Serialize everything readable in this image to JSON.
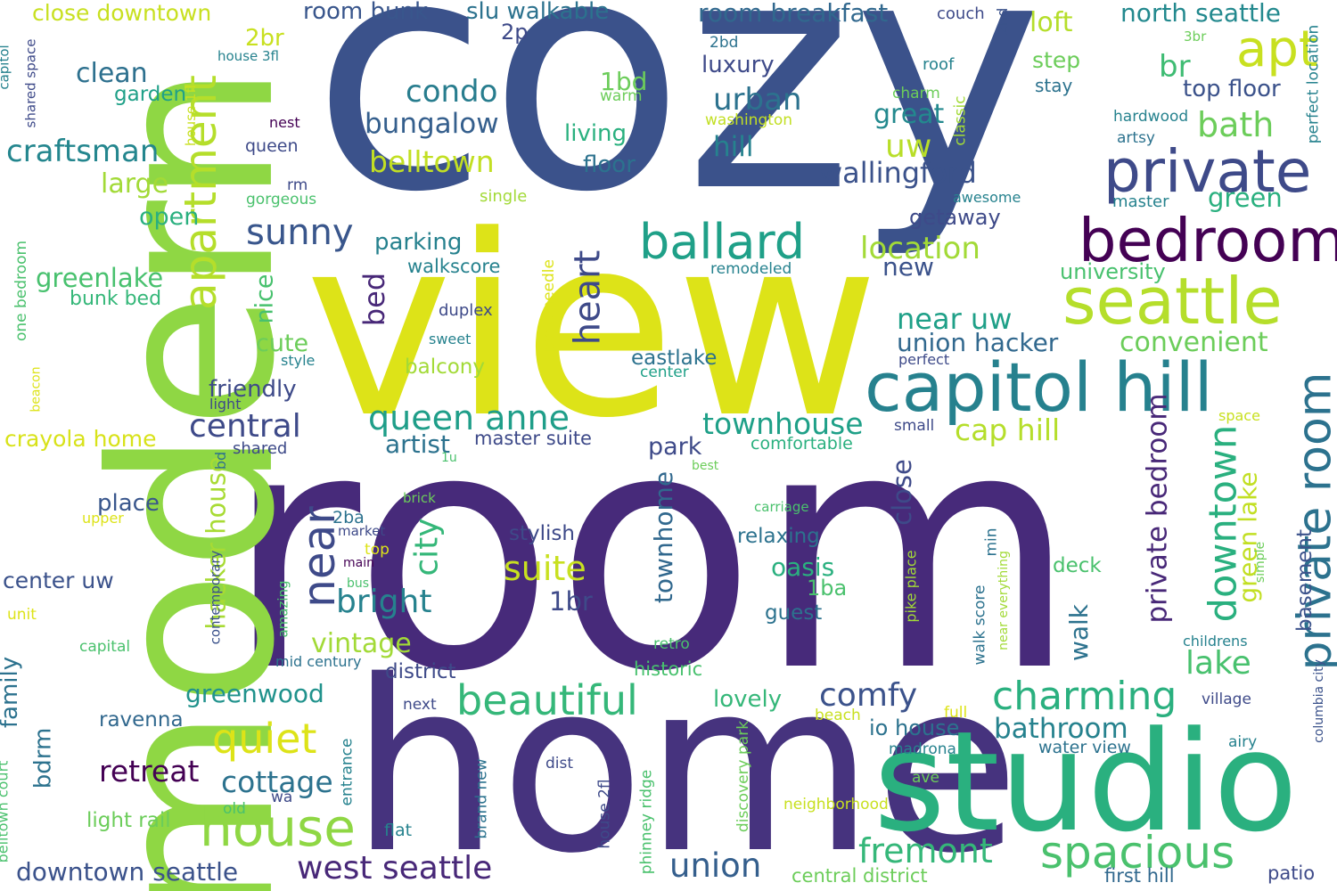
{
  "words": [
    {
      "text": "cozy",
      "color": "#3b528b"
    },
    {
      "text": "room",
      "color": "#472a7a"
    },
    {
      "text": "view",
      "color": "#dde318"
    },
    {
      "text": "modern",
      "color": "#8fd744"
    },
    {
      "text": "home",
      "color": "#46337e"
    },
    {
      "text": "studio",
      "color": "#2ab07f"
    },
    {
      "text": "capitol hill",
      "color": "#26818e"
    },
    {
      "text": "bedroom",
      "color": "#440154"
    },
    {
      "text": "private",
      "color": "#3e4a89"
    },
    {
      "text": "seattle",
      "color": "#b5de2b"
    },
    {
      "text": "apartment",
      "color": "#b5de2b"
    },
    {
      "text": "ballard",
      "color": "#1fa088"
    },
    {
      "text": "house",
      "color": "#8fd744"
    },
    {
      "text": "apt",
      "color": "#c8e020"
    },
    {
      "text": "private room",
      "color": "#2c728e"
    },
    {
      "text": "near",
      "color": "#3e4a89"
    },
    {
      "text": "spacious",
      "color": "#4ac16d"
    },
    {
      "text": "west seattle",
      "color": "#482878"
    },
    {
      "text": "downtown",
      "color": "#2ab07f"
    },
    {
      "text": "charming",
      "color": "#2ab07f"
    },
    {
      "text": "beautiful",
      "color": "#35b779"
    },
    {
      "text": "quiet",
      "color": "#dde318"
    },
    {
      "text": "fremont",
      "color": "#35b779"
    },
    {
      "text": "queen anne",
      "color": "#1f9e89"
    },
    {
      "text": "sunny",
      "color": "#39568c"
    },
    {
      "text": "suite",
      "color": "#c8e020"
    },
    {
      "text": "bathroom",
      "color": "#26828e"
    },
    {
      "text": "condo",
      "color": "#287d8e"
    },
    {
      "text": "bungalow",
      "color": "#355f8d"
    },
    {
      "text": "craftsman",
      "color": "#24868e"
    },
    {
      "text": "central",
      "color": "#3e4a89"
    },
    {
      "text": "union hacker",
      "color": "#31688e"
    },
    {
      "text": "near uw",
      "color": "#1fa088"
    },
    {
      "text": "townhouse",
      "color": "#1fa088"
    },
    {
      "text": "cottage",
      "color": "#2c728e"
    },
    {
      "text": "comfy",
      "color": "#3b528b"
    },
    {
      "text": "private bedroom",
      "color": "#482878"
    },
    {
      "text": "heart",
      "color": "#3e4a89"
    },
    {
      "text": "city",
      "color": "#35b779"
    },
    {
      "text": "bright",
      "color": "#26828e"
    },
    {
      "text": "lake",
      "color": "#48c16e"
    },
    {
      "text": "union",
      "color": "#355f8d"
    },
    {
      "text": "retreat",
      "color": "#440154"
    },
    {
      "text": "greenwood",
      "color": "#20928c"
    },
    {
      "text": "downtown seattle",
      "color": "#3b528b"
    },
    {
      "text": "bath",
      "color": "#6ccd5a"
    },
    {
      "text": "belltown",
      "color": "#c2df23"
    },
    {
      "text": "wallingford",
      "color": "#3b528b"
    },
    {
      "text": "location",
      "color": "#a2da37"
    },
    {
      "text": "cap hill",
      "color": "#b5de2b"
    },
    {
      "text": "hacker house",
      "color": "#a8db34"
    },
    {
      "text": "uw",
      "color": "#b8de29"
    },
    {
      "text": "urban",
      "color": "#2c728e"
    },
    {
      "text": "clean",
      "color": "#2d708e"
    },
    {
      "text": "vintage",
      "color": "#a2da37"
    },
    {
      "text": "convenient",
      "color": "#6ccd5a"
    },
    {
      "text": "green lake",
      "color": "#c2df23"
    },
    {
      "text": "townhome",
      "color": "#31688e"
    },
    {
      "text": "greenlake",
      "color": "#48c16e"
    },
    {
      "text": "large",
      "color": "#a2da37"
    },
    {
      "text": "great",
      "color": "#23898e"
    },
    {
      "text": "loft",
      "color": "#b5de2b"
    },
    {
      "text": "north seattle",
      "color": "#23898e"
    },
    {
      "text": "room breakfast",
      "color": "#31688e"
    },
    {
      "text": "room bunk",
      "color": "#39568c"
    },
    {
      "text": "slu walkable",
      "color": "#2c728e"
    },
    {
      "text": "close downtown",
      "color": "#c8e020"
    },
    {
      "text": "crayola home",
      "color": "#d8e219"
    },
    {
      "text": "friendly",
      "color": "#3e4a89"
    },
    {
      "text": "cute",
      "color": "#6ccd5a"
    },
    {
      "text": "nice",
      "color": "#48c16e"
    },
    {
      "text": "bed",
      "color": "#482878"
    },
    {
      "text": "open",
      "color": "#2ab07f"
    },
    {
      "text": "parking",
      "color": "#26818e"
    },
    {
      "text": "artist",
      "color": "#2c728e"
    },
    {
      "text": "park",
      "color": "#3e4a89"
    },
    {
      "text": "new",
      "color": "#3b528b"
    },
    {
      "text": "living",
      "color": "#2ab07f"
    },
    {
      "text": "floor",
      "color": "#2c728e"
    },
    {
      "text": "1bd",
      "color": "#6ccd5a"
    },
    {
      "text": "luxury",
      "color": "#3e4a89"
    },
    {
      "text": "hill",
      "color": "#26828e"
    },
    {
      "text": "br",
      "color": "#3fbc73"
    },
    {
      "text": "top floor",
      "color": "#3b528b"
    },
    {
      "text": "step",
      "color": "#6ccd5a"
    },
    {
      "text": "green",
      "color": "#2ab07f"
    },
    {
      "text": "university",
      "color": "#48c16e"
    },
    {
      "text": "getaway",
      "color": "#3e4a89"
    },
    {
      "text": "close",
      "color": "#3e4a89"
    },
    {
      "text": "family",
      "color": "#2c728e"
    },
    {
      "text": "bdrm",
      "color": "#2c728e"
    },
    {
      "text": "place",
      "color": "#39568c"
    },
    {
      "text": "1br",
      "color": "#3e4a89"
    },
    {
      "text": "stylish",
      "color": "#3e4a89"
    },
    {
      "text": "relaxing",
      "color": "#2c728e"
    },
    {
      "text": "oasis",
      "color": "#2ab07f"
    },
    {
      "text": "1ba",
      "color": "#4ac16d"
    },
    {
      "text": "guest",
      "color": "#2c728e"
    },
    {
      "text": "walk",
      "color": "#2c728e"
    },
    {
      "text": "deck",
      "color": "#4ac16d"
    },
    {
      "text": "basement",
      "color": "#3b528b"
    },
    {
      "text": "center uw",
      "color": "#3b528b"
    },
    {
      "text": "lovely",
      "color": "#35b779"
    },
    {
      "text": "io house",
      "color": "#2c728e"
    },
    {
      "text": "central district",
      "color": "#6ccd5a"
    },
    {
      "text": "first hill",
      "color": "#31688e"
    },
    {
      "text": "patio",
      "color": "#3e4a89"
    },
    {
      "text": "light rail",
      "color": "#6ccd5a"
    },
    {
      "text": "ravenna",
      "color": "#31688e"
    },
    {
      "text": "master suite",
      "color": "#3e4a89"
    },
    {
      "text": "eastlake",
      "color": "#2c728e"
    },
    {
      "text": "balcony",
      "color": "#a2da37"
    },
    {
      "text": "walkscore",
      "color": "#26828e"
    },
    {
      "text": "comfortable",
      "color": "#2ab07f"
    },
    {
      "text": "district",
      "color": "#3e4a89"
    },
    {
      "text": "historic",
      "color": "#48c16e"
    },
    {
      "text": "bunk bed",
      "color": "#35b779"
    },
    {
      "text": "garden",
      "color": "#1fa088"
    },
    {
      "text": "2br",
      "color": "#c8e020"
    },
    {
      "text": "2p",
      "color": "#3e4a89"
    },
    {
      "text": "2bd",
      "color": "#2c728e"
    },
    {
      "text": "couch",
      "color": "#3e4a89"
    },
    {
      "text": "2nd",
      "color": "#3b528b"
    },
    {
      "text": "3br",
      "color": "#6ccd5a"
    },
    {
      "text": "stay",
      "color": "#2c728e"
    },
    {
      "text": "roof",
      "color": "#26828e"
    },
    {
      "text": "charm",
      "color": "#6ccd5a"
    },
    {
      "text": "classic",
      "color": "#a2da37"
    },
    {
      "text": "washington",
      "color": "#c2df23"
    },
    {
      "text": "warm",
      "color": "#6ccd5a"
    },
    {
      "text": "hardwood",
      "color": "#26828e"
    },
    {
      "text": "artsy",
      "color": "#2c728e"
    },
    {
      "text": "master",
      "color": "#26828e"
    },
    {
      "text": "perfect location",
      "color": "#26828e"
    },
    {
      "text": "awesome",
      "color": "#26828e"
    },
    {
      "text": "single",
      "color": "#a2da37"
    },
    {
      "text": "remodeled",
      "color": "#26828e"
    },
    {
      "text": "perfect",
      "color": "#3e4a89"
    },
    {
      "text": "center",
      "color": "#1fa088"
    },
    {
      "text": "space needle",
      "color": "#dde318"
    },
    {
      "text": "duplex",
      "color": "#3e4a89"
    },
    {
      "text": "sweet",
      "color": "#26828e"
    },
    {
      "text": "style",
      "color": "#26828e"
    },
    {
      "text": "light",
      "color": "#3e4a89"
    },
    {
      "text": "shared",
      "color": "#3e4a89"
    },
    {
      "text": "small",
      "color": "#3e4a89"
    },
    {
      "text": "space",
      "color": "#c8e020"
    },
    {
      "text": "best",
      "color": "#6ccd5a"
    },
    {
      "text": "1u",
      "color": "#4ac16d"
    },
    {
      "text": "bd",
      "color": "#2c728e"
    },
    {
      "text": "brick",
      "color": "#6ccd5a"
    },
    {
      "text": "carriage",
      "color": "#4ac16d"
    },
    {
      "text": "upper",
      "color": "#dde318"
    },
    {
      "text": "2ba",
      "color": "#2c728e"
    },
    {
      "text": "market",
      "color": "#3e4a89"
    },
    {
      "text": "top",
      "color": "#dde318"
    },
    {
      "text": "main",
      "color": "#440154"
    },
    {
      "text": "bus",
      "color": "#4ac16d"
    },
    {
      "text": "amazing",
      "color": "#4ac16d"
    },
    {
      "text": "mid century",
      "color": "#2c728e"
    },
    {
      "text": "contemporary",
      "color": "#3b528b"
    },
    {
      "text": "pike place",
      "color": "#a2da37"
    },
    {
      "text": "walk score",
      "color": "#2c728e"
    },
    {
      "text": "min",
      "color": "#2c728e"
    },
    {
      "text": "near everything",
      "color": "#a2da37"
    },
    {
      "text": "simple",
      "color": "#6ccd5a"
    },
    {
      "text": "childrens",
      "color": "#26828e"
    },
    {
      "text": "columbia city",
      "color": "#3b528b"
    },
    {
      "text": "village",
      "color": "#3e4a89"
    },
    {
      "text": "airy",
      "color": "#26828e"
    },
    {
      "text": "retro",
      "color": "#4ac16d"
    },
    {
      "text": "unit",
      "color": "#dde318"
    },
    {
      "text": "capital",
      "color": "#4ac16d"
    },
    {
      "text": "next",
      "color": "#3e4a89"
    },
    {
      "text": "beach",
      "color": "#c8e020"
    },
    {
      "text": "full",
      "color": "#dde318"
    },
    {
      "text": "madrona",
      "color": "#26828e"
    },
    {
      "text": "water view",
      "color": "#2c728e"
    },
    {
      "text": "dist",
      "color": "#3e4a89"
    },
    {
      "text": "ave",
      "color": "#6ccd5a"
    },
    {
      "text": "neighborhood",
      "color": "#c8e020"
    },
    {
      "text": "discovery park",
      "color": "#6ccd5a"
    },
    {
      "text": "phinney ridge",
      "color": "#4ac16d"
    },
    {
      "text": "house 2fl",
      "color": "#3e4a89"
    },
    {
      "text": "brand new",
      "color": "#2c728e"
    },
    {
      "text": "flat",
      "color": "#26828e"
    },
    {
      "text": "entrance",
      "color": "#26828e"
    },
    {
      "text": "old",
      "color": "#4ac16d"
    },
    {
      "text": "wa",
      "color": "#3e4a89"
    },
    {
      "text": "belltown court",
      "color": "#4ac16d"
    },
    {
      "text": "capitol",
      "color": "#26828e"
    },
    {
      "text": "shared space",
      "color": "#3e4a89"
    },
    {
      "text": "house 3fl",
      "color": "#26828e"
    },
    {
      "text": "house 1fl",
      "color": "#c8e020"
    },
    {
      "text": "nest",
      "color": "#440154"
    },
    {
      "text": "queen",
      "color": "#3e4a89"
    },
    {
      "text": "rm",
      "color": "#3e4a89"
    },
    {
      "text": "gorgeous",
      "color": "#4ac16d"
    },
    {
      "text": "one bedroom",
      "color": "#4ac16d"
    },
    {
      "text": "beacon",
      "color": "#dde318"
    }
  ]
}
